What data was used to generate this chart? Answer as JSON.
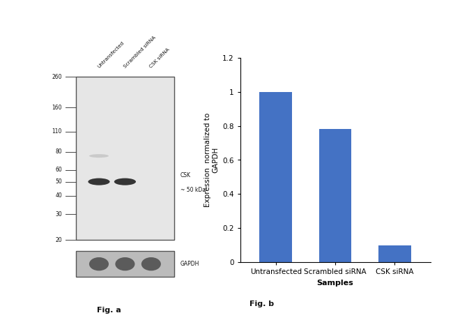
{
  "fig_width": 6.5,
  "fig_height": 4.59,
  "dpi": 100,
  "background_color": "#ffffff",
  "wb_panel": {
    "lane_labels": [
      "Untransfected",
      "Scrambled siRNA",
      "CSK siRNA"
    ],
    "mw_markers": [
      260,
      160,
      110,
      80,
      60,
      50,
      40,
      30,
      20
    ],
    "band_annotation_line1": "CSK",
    "band_annotation_line2": "~ 50 kDa",
    "gapdh_label": "GAPDH",
    "fig_label": "Fig. a",
    "blot_bg": "#e6e6e6",
    "band_color": "#222222",
    "faint_band_color": "#aaaaaa",
    "gapdh_bg": "#bbbbbb"
  },
  "bar_panel": {
    "categories": [
      "Untransfected",
      "Scrambled siRNA",
      "CSK siRNA"
    ],
    "values": [
      1.0,
      0.78,
      0.1
    ],
    "bar_color": "#4472C4",
    "bar_width": 0.55,
    "ylim": [
      0,
      1.2
    ],
    "yticks": [
      0,
      0.2,
      0.4,
      0.6,
      0.8,
      1.0,
      1.2
    ],
    "ytick_labels": [
      "0",
      "0.2",
      "0.4",
      "0.6",
      "0.8",
      "1",
      "1.2"
    ],
    "ylabel": "Expression  normalized to\nGAPDH",
    "xlabel": "Samples",
    "fig_label": "Fig. b"
  }
}
